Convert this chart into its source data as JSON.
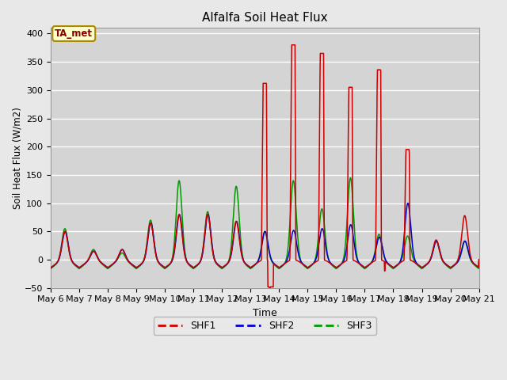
{
  "title": "Alfalfa Soil Heat Flux",
  "xlabel": "Time",
  "ylabel": "Soil Heat Flux (W/m2)",
  "ylim": [
    -50,
    410
  ],
  "xlim": [
    0,
    15
  ],
  "background_color": "#e8e8e8",
  "plot_bg_color": "#d4d4d4",
  "grid_color": "#ffffff",
  "tick_labels": [
    "May 6",
    "May 7",
    "May 8",
    "May 9",
    "May 10",
    "May 11",
    "May 12",
    "May 13",
    "May 14",
    "May 15",
    "May 16",
    "May 17",
    "May 18",
    "May 19",
    "May 20",
    "May 21"
  ],
  "shf1_color": "#cc0000",
  "shf2_color": "#0000cc",
  "shf3_color": "#009900",
  "legend_label1": "SHF1",
  "legend_label2": "SHF2",
  "legend_label3": "SHF3",
  "annotation_text": "TA_met"
}
